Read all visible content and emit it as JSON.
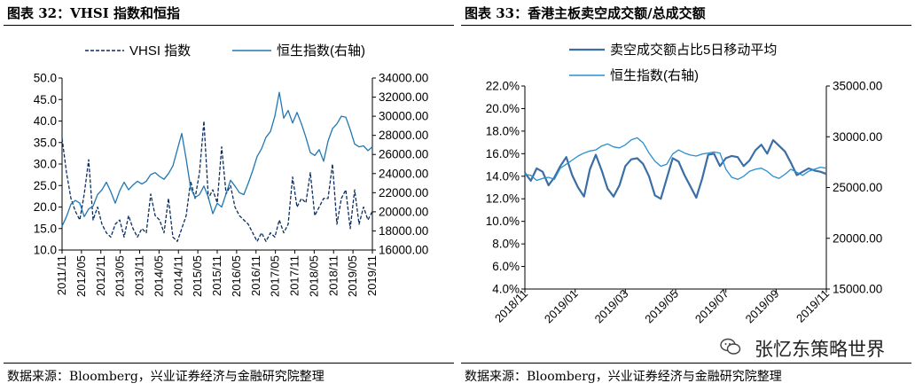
{
  "left_panel": {
    "title": "图表 32：VHSI 指数和恒指",
    "source": "数据来源：Bloomberg，兴业证券经济与金融研究院整理"
  },
  "right_panel": {
    "title": "图表 33：香港主板卖空成交额/总成交额",
    "source": "数据来源：Bloomberg，兴业证券经济与金融研究院整理"
  },
  "watermark": {
    "text": "张忆东策略世界"
  },
  "colors": {
    "dark_blue": "#0b2d5e",
    "mid_blue": "#1f77b4",
    "steel_blue": "#3a6ea5",
    "light_blue": "#2a8fd0"
  },
  "chart_data": [
    {
      "type": "line",
      "legend_placement": "top",
      "grid": false,
      "x_tick_labels": [
        "2011/11",
        "2012/05",
        "2012/11",
        "2013/05",
        "2013/11",
        "2014/05",
        "2014/11",
        "2015/05",
        "2015/11",
        "2016/05",
        "2016/11",
        "2017/05",
        "2017/11",
        "2018/05",
        "2018/11",
        "2019/05",
        "2019/11"
      ],
      "left_axis": {
        "ticks": [
          "10.0",
          "15.0",
          "20.0",
          "25.0",
          "30.0",
          "35.0",
          "40.0",
          "45.0",
          "50.0"
        ],
        "ylim": [
          10,
          50
        ]
      },
      "right_axis": {
        "ticks": [
          "16000.00",
          "18000.00",
          "20000.00",
          "22000.00",
          "24000.00",
          "26000.00",
          "28000.00",
          "30000.00",
          "32000.00",
          "34000.00"
        ],
        "ylim": [
          16000,
          34000
        ]
      },
      "series": [
        {
          "name": "VHSI 指数",
          "axis": "left",
          "style": "dashed",
          "color": "#0b2d5e",
          "values": [
            36,
            28,
            22,
            19,
            17,
            23,
            31,
            17,
            20,
            16,
            14,
            13,
            16,
            17,
            13,
            18,
            15,
            13,
            15,
            14,
            23,
            18,
            17,
            14,
            22,
            13,
            12,
            15,
            18,
            26,
            22,
            28,
            40,
            22,
            24,
            21,
            34,
            23,
            25,
            20,
            18,
            17,
            16,
            14,
            12,
            14,
            12,
            14,
            13,
            17,
            14,
            16,
            27,
            20,
            22,
            21,
            28,
            18,
            20,
            22,
            22,
            30,
            16,
            22,
            24,
            15,
            24,
            16,
            20,
            17,
            19
          ]
        },
        {
          "name": "恒生指数(右轴)",
          "axis": "right",
          "style": "solid",
          "color": "#1f77b4",
          "values": [
            18500,
            19500,
            20800,
            21200,
            20900,
            19500,
            20300,
            20600,
            21800,
            22300,
            23100,
            22100,
            20900,
            22200,
            23100,
            22300,
            22800,
            23200,
            22900,
            23200,
            23900,
            24100,
            23700,
            23400,
            24000,
            24800,
            26500,
            28200,
            25500,
            22500,
            21500,
            21800,
            22700,
            21500,
            19800,
            20900,
            20500,
            21900,
            23300,
            22700,
            22000,
            21800,
            23000,
            24300,
            25800,
            26600,
            27800,
            28400,
            30000,
            32500,
            29800,
            30600,
            29300,
            30400,
            29200,
            27800,
            26200,
            25900,
            26500,
            25300,
            27400,
            28700,
            29200,
            30000,
            29900,
            28600,
            27100,
            26800,
            26900,
            26400,
            26800
          ]
        }
      ]
    },
    {
      "type": "line",
      "legend_placement": "top",
      "grid": false,
      "x_tick_labels": [
        "2018/11",
        "2019/01",
        "2019/03",
        "2019/05",
        "2019/07",
        "2019/09",
        "2019/11"
      ],
      "left_axis": {
        "ticks": [
          "4.0%",
          "6.0%",
          "8.0%",
          "10.0%",
          "12.0%",
          "14.0%",
          "16.0%",
          "18.0%",
          "20.0%",
          "22.0%"
        ],
        "ylim": [
          4,
          22
        ]
      },
      "right_axis": {
        "ticks": [
          "15000.00",
          "20000.00",
          "25000.00",
          "30000.00",
          "35000.00"
        ],
        "ylim": [
          15000,
          35000
        ]
      },
      "series": [
        {
          "name": "卖空成交额占比5日移动平均",
          "axis": "left",
          "style": "solid",
          "color": "#3a6ea5",
          "values": [
            14.3,
            13.6,
            14.7,
            14.4,
            13.2,
            13.9,
            14.9,
            15.7,
            14.1,
            13.0,
            12.2,
            14.6,
            15.9,
            14.5,
            12.9,
            12.2,
            13.2,
            14.9,
            15.5,
            15.6,
            15.1,
            14.0,
            12.3,
            12.0,
            13.8,
            15.6,
            15.3,
            14.1,
            13.1,
            12.1,
            13.8,
            15.9,
            16.0,
            14.9,
            15.6,
            15.8,
            15.7,
            14.9,
            15.4,
            16.3,
            16.8,
            16.0,
            17.2,
            16.7,
            16.2,
            15.2,
            14.1,
            14.4,
            14.7,
            14.5,
            14.4,
            14.2
          ]
        },
        {
          "name": "恒生指数(右轴)",
          "axis": "right",
          "style": "solid",
          "color": "#2a8fd0",
          "values": [
            26300,
            26200,
            25700,
            25900,
            26000,
            25800,
            26900,
            27300,
            27700,
            28100,
            28400,
            28600,
            28700,
            29100,
            29300,
            29000,
            28900,
            29200,
            29700,
            29900,
            29400,
            28400,
            27600,
            27100,
            27300,
            28300,
            28700,
            28400,
            28200,
            28100,
            28300,
            28400,
            28500,
            28400,
            26800,
            26000,
            25800,
            26100,
            26600,
            26800,
            26900,
            26600,
            26100,
            25900,
            26300,
            26800,
            26500,
            26200,
            26600,
            26800,
            27000,
            26900
          ]
        }
      ]
    }
  ]
}
